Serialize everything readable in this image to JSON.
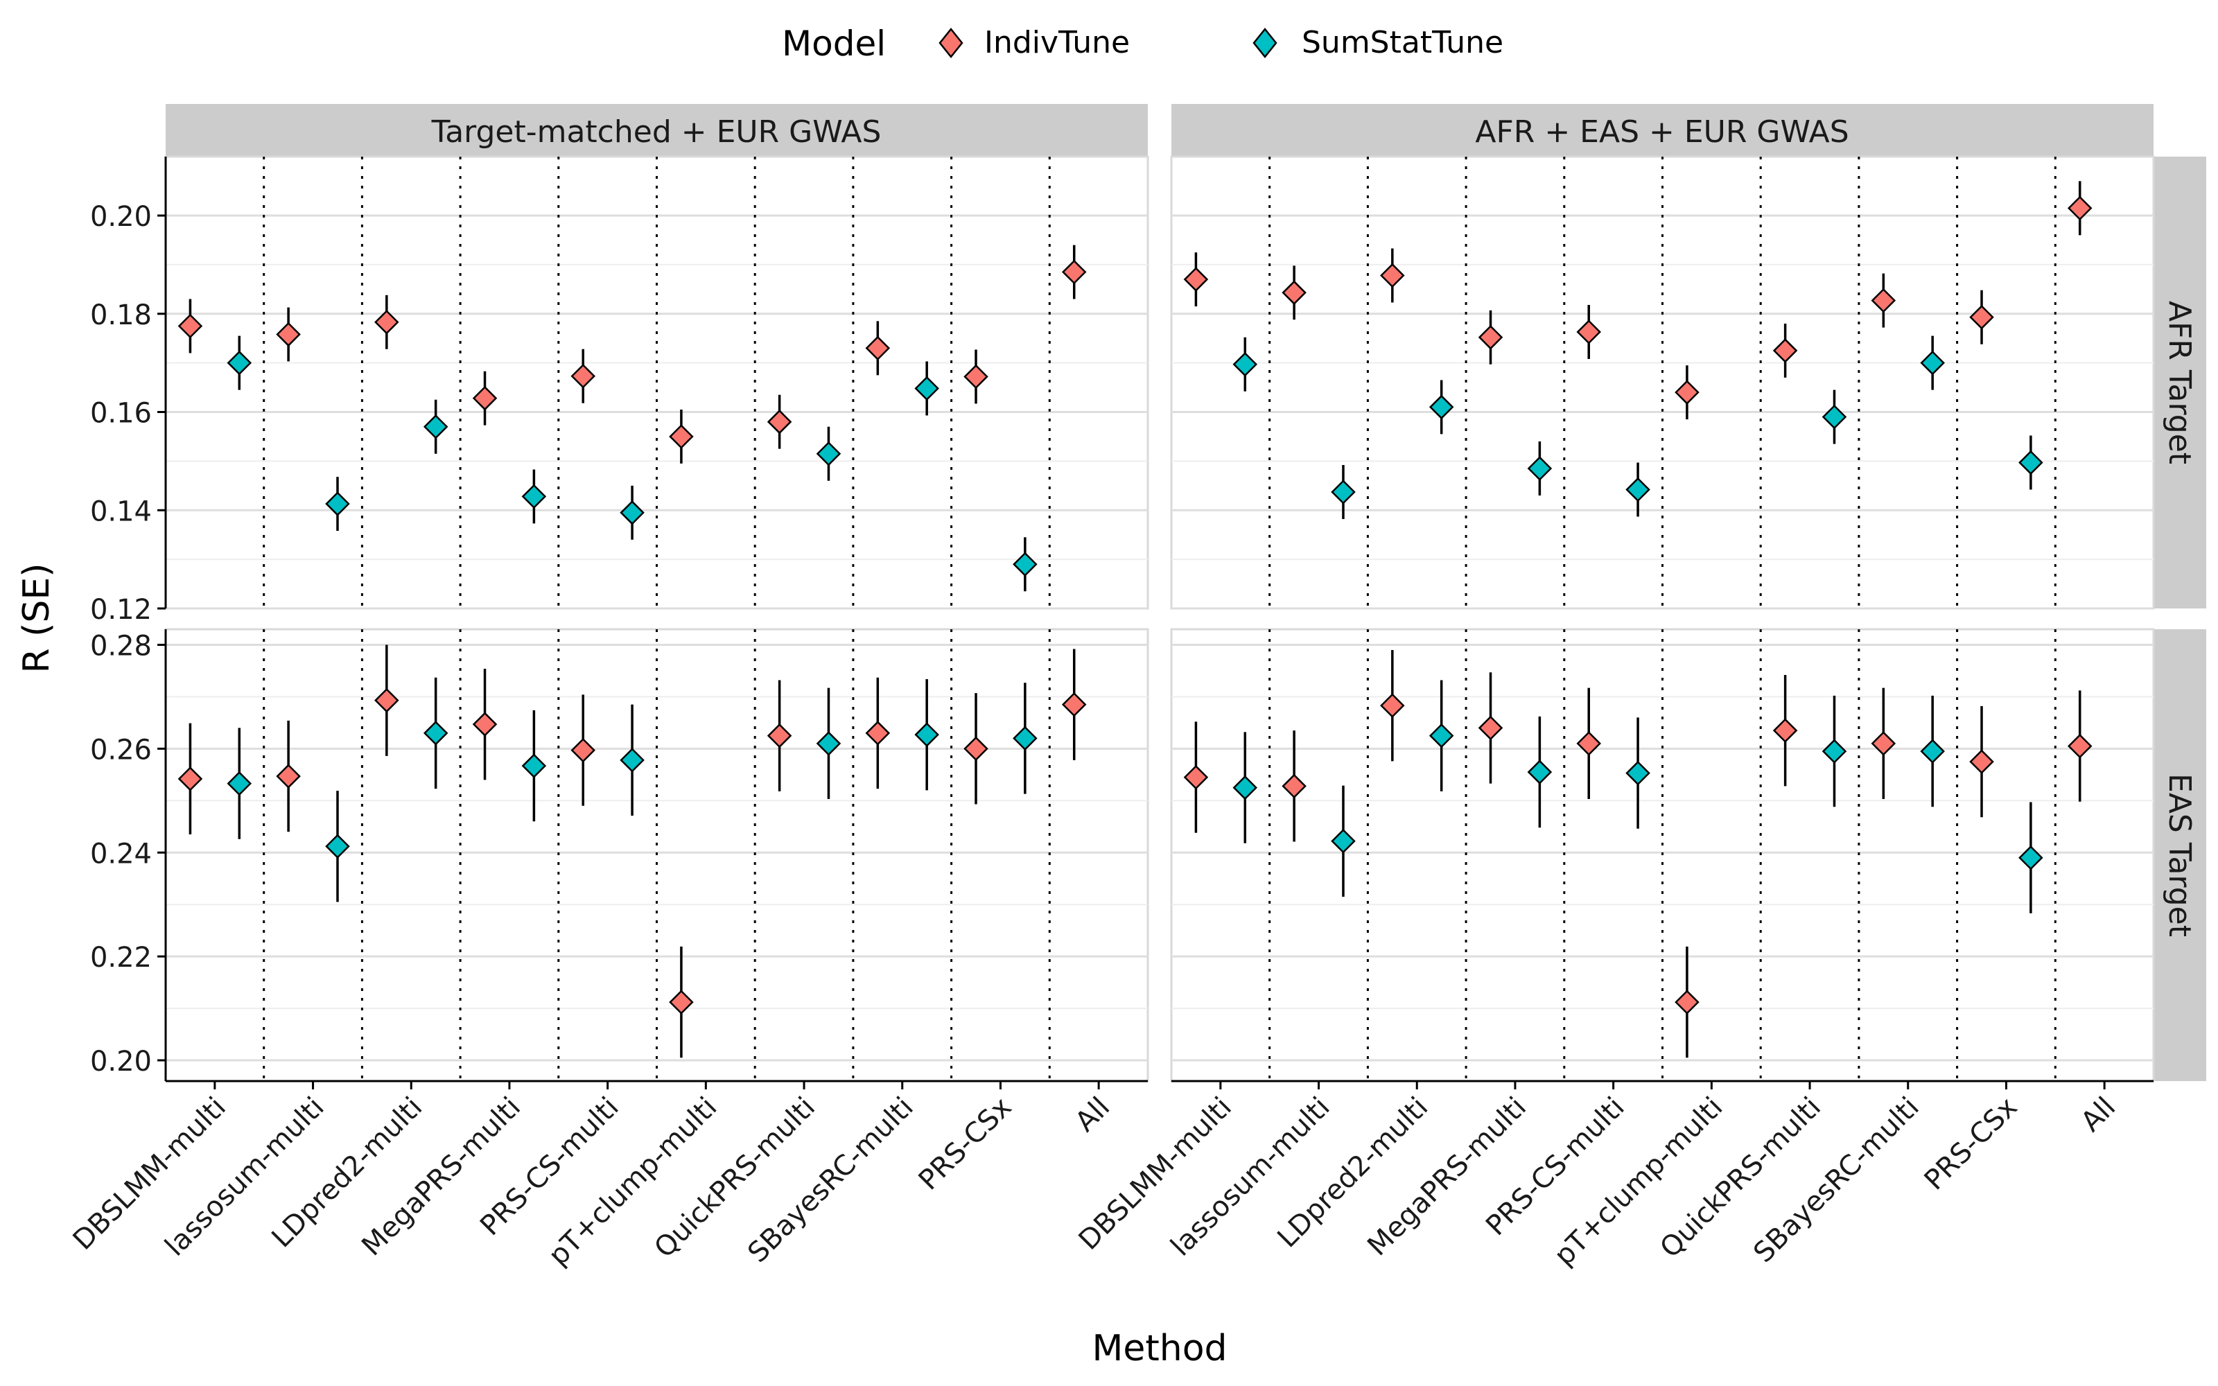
{
  "chart_data": {
    "type": "scatter",
    "subtype": "point-range (estimate with error bars), faceted 2x2",
    "legend": {
      "title": "Model",
      "placement": "top",
      "items": [
        {
          "name": "IndivTune",
          "color": "#F8766D",
          "shape": "diamond"
        },
        {
          "name": "SumStatTune",
          "color": "#00BFC4",
          "shape": "diamond"
        }
      ]
    },
    "xlabel": "Method",
    "ylabel": "R (SE)",
    "categories": [
      "DBSLMM-multi",
      "lassosum-multi",
      "LDpred2-multi",
      "MegaPRS-multi",
      "PRS-CS-multi",
      "pT+clump-multi",
      "QuickPRS-multi",
      "SBayesRC-multi",
      "PRS-CSx",
      "All"
    ],
    "column_facets": [
      "Target-matched + EUR GWAS",
      "AFR + EAS + EUR GWAS"
    ],
    "row_facets": [
      {
        "label": "AFR Target",
        "ylim": [
          0.12,
          0.212
        ],
        "yticks": [
          "0.12",
          "0.14",
          "0.16",
          "0.18",
          "0.20"
        ]
      },
      {
        "label": "EAS Target",
        "ylim": [
          0.196,
          0.283
        ],
        "yticks": [
          "0.20",
          "0.22",
          "0.24",
          "0.26",
          "0.28"
        ]
      }
    ],
    "grid": true,
    "category_separators": "dotted vertical lines",
    "panels": [
      {
        "row": "AFR Target",
        "column": "Target-matched + EUR GWAS",
        "series": [
          {
            "name": "IndivTune",
            "values": [
              0.1775,
              0.1758,
              0.1783,
              0.1628,
              0.1673,
              0.155,
              0.158,
              0.173,
              0.1672,
              0.1885
            ],
            "se": [
              0.0055,
              0.0055,
              0.0055,
              0.0055,
              0.0055,
              0.0055,
              0.0055,
              0.0055,
              0.0055,
              0.0055
            ]
          },
          {
            "name": "SumStatTune",
            "values": [
              0.17,
              0.1413,
              0.157,
              0.1428,
              0.1395,
              null,
              0.1515,
              0.1648,
              0.129,
              null
            ],
            "se": [
              0.0055,
              0.0055,
              0.0055,
              0.0055,
              0.0055,
              null,
              0.0055,
              0.0055,
              0.0055,
              null
            ]
          }
        ]
      },
      {
        "row": "AFR Target",
        "column": "AFR + EAS + EUR GWAS",
        "series": [
          {
            "name": "IndivTune",
            "values": [
              0.187,
              0.1843,
              0.1878,
              0.1752,
              0.1763,
              0.164,
              0.1725,
              0.1827,
              0.1793,
              0.2015
            ],
            "se": [
              0.0055,
              0.0055,
              0.0055,
              0.0055,
              0.0055,
              0.0055,
              0.0055,
              0.0055,
              0.0055,
              0.0055
            ]
          },
          {
            "name": "SumStatTune",
            "values": [
              0.1697,
              0.1437,
              0.161,
              0.1485,
              0.1442,
              null,
              0.159,
              0.17,
              0.1497,
              null
            ],
            "se": [
              0.0055,
              0.0055,
              0.0055,
              0.0055,
              0.0055,
              null,
              0.0055,
              0.0055,
              0.0055,
              null
            ]
          }
        ]
      },
      {
        "row": "EAS Target",
        "column": "Target-matched + EUR GWAS",
        "series": [
          {
            "name": "IndivTune",
            "values": [
              0.2542,
              0.2547,
              0.2693,
              0.2647,
              0.2597,
              0.2112,
              0.2625,
              0.263,
              0.26,
              0.2685
            ],
            "se": [
              0.0107,
              0.0107,
              0.0107,
              0.0107,
              0.0107,
              0.0107,
              0.0107,
              0.0107,
              0.0107,
              0.0107
            ]
          },
          {
            "name": "SumStatTune",
            "values": [
              0.2533,
              0.2412,
              0.263,
              0.2567,
              0.2578,
              null,
              0.261,
              0.2627,
              0.262,
              null
            ],
            "se": [
              0.0107,
              0.0107,
              0.0107,
              0.0107,
              0.0107,
              null,
              0.0107,
              0.0107,
              0.0107,
              null
            ]
          }
        ]
      },
      {
        "row": "EAS Target",
        "column": "AFR + EAS + EUR GWAS",
        "series": [
          {
            "name": "IndivTune",
            "values": [
              0.2545,
              0.2528,
              0.2683,
              0.264,
              0.261,
              0.2112,
              0.2635,
              0.261,
              0.2575,
              0.2605
            ],
            "se": [
              0.0107,
              0.0107,
              0.0107,
              0.0107,
              0.0107,
              0.0107,
              0.0107,
              0.0107,
              0.0107,
              0.0107
            ]
          },
          {
            "name": "SumStatTune",
            "values": [
              0.2525,
              0.2422,
              0.2625,
              0.2555,
              0.2553,
              null,
              0.2595,
              0.2595,
              0.239,
              null
            ],
            "se": [
              0.0107,
              0.0107,
              0.0107,
              0.0107,
              0.0107,
              null,
              0.0107,
              0.0107,
              0.0107,
              null
            ]
          }
        ]
      }
    ]
  }
}
